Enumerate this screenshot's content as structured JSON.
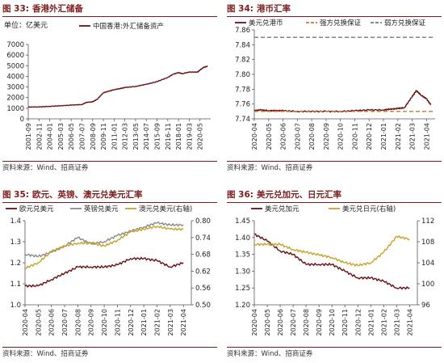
{
  "colors": {
    "title": "#7b1c1c",
    "dark_red": "#6b0f12",
    "gold": "#c9a227",
    "gray": "#8a8a8a",
    "dashed_orange": "#c4782f",
    "dashed_gray": "#777777"
  },
  "panels": [
    {
      "num": "图 33:",
      "title": "香港外汇储备",
      "source": "资料来源：Wind、招商证券",
      "unit": "单位：亿美元"
    },
    {
      "num": "图 34:",
      "title": "港币汇率",
      "source": "资料来源：Wind、招商证券"
    },
    {
      "num": "图 35:",
      "title": "欧元、英镑、澳元兑美元汇率",
      "source": "资料来源：Wind、招商证券"
    },
    {
      "num": "图 36:",
      "title": "美元兑加元、日元汇率",
      "source": "资料来源：Wind、招商证券"
    }
  ],
  "chart_data": [
    {
      "type": "line",
      "title": "香港外汇储备",
      "unit": "单位：亿美元",
      "x_ticks": [
        "2001-09",
        "2002-11",
        "2004-01",
        "2005-03",
        "2006-05",
        "2007-07",
        "2008-09",
        "2009-11",
        "2011-01",
        "2012-03",
        "2013-05",
        "2014-07",
        "2015-09",
        "2016-11",
        "2018-01",
        "2019-03",
        "2020-05"
      ],
      "ylim": [
        0,
        7000
      ],
      "y_ticks": [
        0,
        1000,
        2000,
        3000,
        4000,
        5000,
        6000,
        7000
      ],
      "series": [
        {
          "name": "中国香港:外汇储备资产",
          "color": "#6b0f12",
          "x": [
            "2001-09",
            "2002-11",
            "2004-01",
            "2005-03",
            "2006-05",
            "2007-07",
            "2008-01",
            "2008-09",
            "2009-03",
            "2009-11",
            "2010-06",
            "2011-01",
            "2011-09",
            "2012-03",
            "2013-05",
            "2014-07",
            "2015-09",
            "2016-11",
            "2017-06",
            "2018-01",
            "2018-06",
            "2019-03",
            "2020-02",
            "2020-05",
            "2020-10",
            "2021-03"
          ],
          "values": [
            1110,
            1120,
            1180,
            1230,
            1290,
            1350,
            1550,
            1600,
            1850,
            2450,
            2600,
            2750,
            2850,
            2950,
            3050,
            3250,
            3500,
            3900,
            4200,
            4350,
            4250,
            4400,
            4400,
            4600,
            4850,
            4950
          ]
        }
      ]
    },
    {
      "type": "line",
      "title": "港币汇率",
      "x_ticks": [
        "2020-04",
        "2020-05",
        "2020-06",
        "2020-07",
        "2020-08",
        "2020-09",
        "2020-10",
        "2020-11",
        "2020-12",
        "2021-01",
        "2021-02",
        "2021-03",
        "2021-04"
      ],
      "ylim": [
        7.74,
        7.86
      ],
      "y_ticks": [
        7.74,
        7.76,
        7.78,
        7.8,
        7.82,
        7.84,
        7.86
      ],
      "series": [
        {
          "name": "美元兑港币",
          "color": "#6b0f12",
          "x": [
            "2020-04",
            "2020-04-15",
            "2020-05",
            "2020-05-15",
            "2020-06",
            "2020-07",
            "2020-08",
            "2020-09",
            "2020-10",
            "2020-11",
            "2020-12",
            "2021-01",
            "2021-01-15",
            "2021-02",
            "2021-02-15",
            "2021-03",
            "2021-03-10",
            "2021-03-20",
            "2021-04",
            "2021-04-10"
          ],
          "values": [
            7.751,
            7.752,
            7.751,
            7.751,
            7.751,
            7.75,
            7.75,
            7.75,
            7.75,
            7.751,
            7.752,
            7.752,
            7.753,
            7.754,
            7.755,
            7.77,
            7.778,
            7.772,
            7.767,
            7.759
          ]
        },
        {
          "name": "强方兑换保证",
          "color": "#c4782f",
          "values": [
            7.75
          ]
        },
        {
          "name": "弱方兑换保证",
          "color": "#777777",
          "values": [
            7.85
          ]
        }
      ]
    },
    {
      "type": "line",
      "title": "欧元、英镑、澳元兑美元汇率",
      "x_ticks": [
        "2020-04",
        "2020-05",
        "2020-06",
        "2020-07",
        "2020-08",
        "2020-09",
        "2020-10",
        "2020-11",
        "2020-12",
        "2021-01",
        "2021-02",
        "2021-03",
        "2021-04"
      ],
      "ylim": [
        1.0,
        1.4
      ],
      "y_ticks": [
        1.0,
        1.1,
        1.2,
        1.3,
        1.4
      ],
      "y2lim": [
        0.5,
        0.8
      ],
      "y2_ticks": [
        0.5,
        0.56,
        0.62,
        0.68,
        0.74,
        0.8
      ],
      "series": [
        {
          "name": "欧元兑美元",
          "color": "#6b0f12",
          "axis": "left",
          "x": [
            "2020-04",
            "2020-05",
            "2020-06",
            "2020-07",
            "2020-08",
            "2020-09",
            "2020-10",
            "2020-11",
            "2020-12",
            "2021-01",
            "2021-02",
            "2021-03",
            "2021-04"
          ],
          "values": [
            1.09,
            1.09,
            1.12,
            1.15,
            1.18,
            1.18,
            1.18,
            1.19,
            1.22,
            1.22,
            1.21,
            1.18,
            1.2
          ]
        },
        {
          "name": "英镑兑美元",
          "color": "#8a8a8a",
          "axis": "left",
          "x": [
            "2020-04",
            "2020-05",
            "2020-06",
            "2020-07",
            "2020-08",
            "2020-09",
            "2020-10",
            "2020-11",
            "2020-12",
            "2021-01",
            "2021-02",
            "2021-03",
            "2021-04"
          ],
          "values": [
            1.24,
            1.23,
            1.25,
            1.28,
            1.32,
            1.29,
            1.3,
            1.33,
            1.35,
            1.37,
            1.39,
            1.38,
            1.38
          ]
        },
        {
          "name": "澳元兑美元(右轴)",
          "color": "#c9a227",
          "axis": "right",
          "x": [
            "2020-04",
            "2020-05",
            "2020-06",
            "2020-07",
            "2020-08",
            "2020-09",
            "2020-10",
            "2020-11",
            "2020-12",
            "2021-01",
            "2021-02",
            "2021-03",
            "2021-04"
          ],
          "values": [
            0.63,
            0.65,
            0.69,
            0.71,
            0.72,
            0.72,
            0.71,
            0.73,
            0.76,
            0.77,
            0.78,
            0.77,
            0.77
          ]
        }
      ]
    },
    {
      "type": "line",
      "title": "美元兑加元、日元汇率",
      "x_ticks": [
        "2020-04",
        "2020-05",
        "2020-06",
        "2020-07",
        "2020-08",
        "2020-09",
        "2020-10",
        "2020-11",
        "2020-12",
        "2021-01",
        "2021-02",
        "2021-03",
        "2021-04"
      ],
      "ylim": [
        1.2,
        1.45
      ],
      "y_ticks": [
        1.2,
        1.25,
        1.3,
        1.35,
        1.4,
        1.45
      ],
      "y2lim": [
        96,
        112
      ],
      "y2_ticks": [
        96,
        100,
        104,
        108,
        112
      ],
      "series": [
        {
          "name": "美元兑加元",
          "color": "#6b0f12",
          "axis": "left",
          "x": [
            "2020-04",
            "2020-05",
            "2020-06",
            "2020-07",
            "2020-08",
            "2020-09",
            "2020-10",
            "2020-11",
            "2020-12",
            "2021-01",
            "2021-02",
            "2021-03",
            "2021-04"
          ],
          "values": [
            1.41,
            1.39,
            1.36,
            1.35,
            1.32,
            1.32,
            1.32,
            1.3,
            1.28,
            1.28,
            1.27,
            1.25,
            1.25
          ]
        },
        {
          "name": "美元兑日元(右轴)",
          "color": "#c9a227",
          "axis": "right",
          "x": [
            "2020-04",
            "2020-05",
            "2020-06",
            "2020-07",
            "2020-08",
            "2020-09",
            "2020-10",
            "2020-11",
            "2020-12",
            "2021-01",
            "2021-02",
            "2021-03",
            "2021-04"
          ],
          "values": [
            107.5,
            107.5,
            107.5,
            106.5,
            106.0,
            105.5,
            105.0,
            104.0,
            103.5,
            104.0,
            106.0,
            109.0,
            108.5
          ]
        }
      ]
    }
  ]
}
